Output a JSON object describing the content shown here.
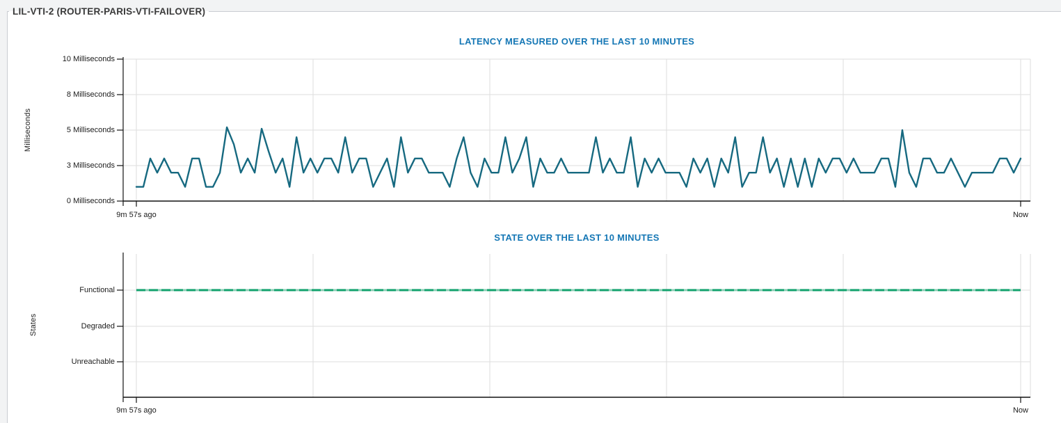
{
  "panel": {
    "title": "LIL-VTI-2 (ROUTER-PARIS-VTI-FAILOVER)"
  },
  "colors": {
    "page_bg": "#f2f3f4",
    "panel_bg": "#ffffff",
    "panel_border": "#c9ccd1",
    "chart_title": "#1577b5",
    "latency_line": "#166980",
    "state_line_functional": "#12a26d",
    "grid": "#dedede",
    "axis": "#111111",
    "tick_text": "#1b1b1b"
  },
  "chart_data": [
    {
      "type": "line",
      "title": "LATENCY MEASURED OVER THE LAST 10 MINUTES",
      "ylabel": "Milliseconds",
      "ylim": [
        0,
        10
      ],
      "grid": true,
      "legend": "none",
      "y_ticks": [
        {
          "value": 0,
          "label": "0 Milliseconds"
        },
        {
          "value": 2.5,
          "label": "3 Milliseconds"
        },
        {
          "value": 5,
          "label": "5 Milliseconds"
        },
        {
          "value": 7.5,
          "label": "8 Milliseconds"
        },
        {
          "value": 10,
          "label": "10 Milliseconds"
        }
      ],
      "x_start_label": "9m 57s ago",
      "x_end_label": "Now",
      "x_span_minutes": 10,
      "unit": "ms",
      "values": [
        1,
        1,
        3,
        2,
        3,
        2,
        2,
        1,
        3,
        3,
        1,
        1,
        2,
        5.2,
        4,
        2,
        3,
        2,
        5.1,
        3.5,
        2,
        3,
        1,
        4.5,
        2,
        3,
        2,
        3,
        3,
        2,
        4.5,
        2,
        3,
        3,
        1,
        2,
        3,
        1,
        4.5,
        2,
        3,
        3,
        2,
        2,
        2,
        1,
        3,
        4.5,
        2,
        1,
        3,
        2,
        2,
        4.5,
        2,
        3,
        4.5,
        1,
        3,
        2,
        2,
        3,
        2,
        2,
        2,
        2,
        4.5,
        2,
        3,
        2,
        2,
        4.5,
        1,
        3,
        2,
        3,
        2,
        2,
        2,
        1,
        3,
        2,
        3,
        1,
        3,
        2,
        4.5,
        1,
        2,
        2,
        4.5,
        2,
        3,
        1,
        3,
        1,
        3,
        1,
        3,
        2,
        3,
        3,
        2,
        3,
        2,
        2,
        2,
        3,
        3,
        1,
        5,
        2,
        1,
        3,
        3,
        2,
        2,
        3,
        2,
        1,
        2,
        2,
        2,
        2,
        3,
        3,
        2,
        3
      ]
    },
    {
      "type": "line",
      "title": "STATE OVER THE LAST 10 MINUTES",
      "ylabel": "States",
      "grid": true,
      "legend": "none",
      "line_style": "dashed",
      "y_ticks": [
        {
          "value": "Functional",
          "label": "Functional"
        },
        {
          "value": "Degraded",
          "label": "Degraded"
        },
        {
          "value": "Unreachable",
          "label": "Unreachable"
        }
      ],
      "x_start_label": "9m 57s ago",
      "x_end_label": "Now",
      "x_span_minutes": 10,
      "constant_state": "Functional"
    }
  ]
}
